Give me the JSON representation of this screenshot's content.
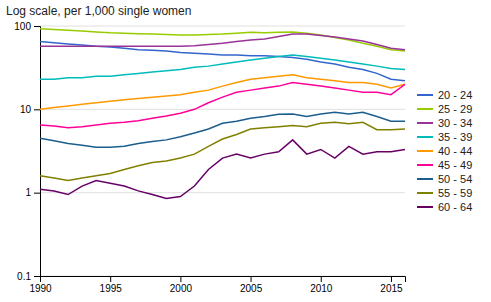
{
  "chart_data": {
    "type": "line",
    "title": "Log scale, per 1,000 single women",
    "x": [
      1990,
      1991,
      1992,
      1993,
      1994,
      1995,
      1996,
      1997,
      1998,
      1999,
      2000,
      2001,
      2002,
      2003,
      2004,
      2005,
      2006,
      2007,
      2008,
      2009,
      2010,
      2011,
      2012,
      2013,
      2014,
      2015,
      2016
    ],
    "series": [
      {
        "name": "20 - 24",
        "color": "#3366CC",
        "values": [
          65,
          63,
          61,
          59,
          57,
          56,
          54,
          52,
          51,
          50,
          48,
          47,
          46,
          45,
          45,
          44,
          44,
          43,
          42,
          40,
          37,
          35,
          32,
          30,
          27,
          23,
          22
        ]
      },
      {
        "name": "25 - 29",
        "color": "#99CC00",
        "values": [
          93,
          91,
          89,
          87,
          85,
          83,
          82,
          81,
          80,
          79,
          78,
          78,
          79,
          80,
          82,
          84,
          83,
          84,
          85,
          82,
          78,
          73,
          68,
          62,
          57,
          52,
          50
        ]
      },
      {
        "name": "30 - 34",
        "color": "#993399",
        "values": [
          57,
          57,
          57,
          57,
          57,
          57,
          57,
          57,
          57,
          57,
          57,
          58,
          60,
          62,
          65,
          68,
          70,
          75,
          80,
          80,
          77,
          74,
          70,
          66,
          60,
          54,
          52
        ]
      },
      {
        "name": "35 - 39",
        "color": "#00BBBB",
        "values": [
          23,
          23,
          24,
          24,
          25,
          25,
          26,
          27,
          28,
          29,
          30,
          32,
          33,
          35,
          37,
          39,
          41,
          43,
          45,
          43,
          41,
          39,
          37,
          35,
          33,
          31,
          30
        ]
      },
      {
        "name": "40 - 44",
        "color": "#FF9900",
        "values": [
          10,
          10.5,
          11,
          11.5,
          12,
          12.5,
          13,
          13.5,
          14,
          14.5,
          15,
          16,
          17,
          19,
          21,
          23,
          24,
          25,
          26,
          24,
          23,
          22,
          21,
          21,
          20,
          18,
          20
        ]
      },
      {
        "name": "45 - 49",
        "color": "#FF0099",
        "values": [
          6.5,
          6.3,
          6.0,
          6.2,
          6.5,
          6.8,
          7.0,
          7.3,
          7.8,
          8.3,
          9.0,
          10,
          12,
          14,
          16,
          17,
          18,
          19,
          21,
          20,
          19,
          18,
          17,
          16,
          16,
          15,
          20
        ]
      },
      {
        "name": "50 - 54",
        "color": "#1B5E8E",
        "values": [
          4.5,
          4.2,
          3.9,
          3.7,
          3.5,
          3.5,
          3.6,
          3.9,
          4.1,
          4.3,
          4.7,
          5.2,
          5.8,
          6.8,
          7.2,
          7.8,
          8.2,
          8.7,
          8.8,
          8.2,
          8.8,
          9.2,
          8.8,
          9.2,
          8.2,
          7.2,
          7.2
        ]
      },
      {
        "name": "55 - 59",
        "color": "#808000",
        "values": [
          1.6,
          1.5,
          1.4,
          1.5,
          1.6,
          1.7,
          1.9,
          2.1,
          2.3,
          2.4,
          2.6,
          2.9,
          3.6,
          4.4,
          5.0,
          5.8,
          6.0,
          6.2,
          6.4,
          6.2,
          6.8,
          7.0,
          6.7,
          7.0,
          5.7,
          5.7,
          5.8
        ]
      },
      {
        "name": "60 - 64",
        "color": "#660066",
        "values": [
          1.1,
          1.05,
          0.95,
          1.2,
          1.4,
          1.3,
          1.2,
          1.05,
          0.95,
          0.85,
          0.9,
          1.2,
          1.9,
          2.6,
          2.9,
          2.6,
          2.9,
          3.1,
          4.3,
          2.9,
          3.3,
          2.6,
          3.6,
          2.9,
          3.1,
          3.1,
          3.3
        ]
      }
    ],
    "xlim": [
      1990,
      2016
    ],
    "ylim": [
      0.1,
      100
    ],
    "xticks": [
      1990,
      1995,
      2000,
      2005,
      2010,
      2015
    ],
    "yticks": [
      0.1,
      1,
      10,
      100
    ],
    "log": "y",
    "grid": true,
    "legend": "right"
  }
}
